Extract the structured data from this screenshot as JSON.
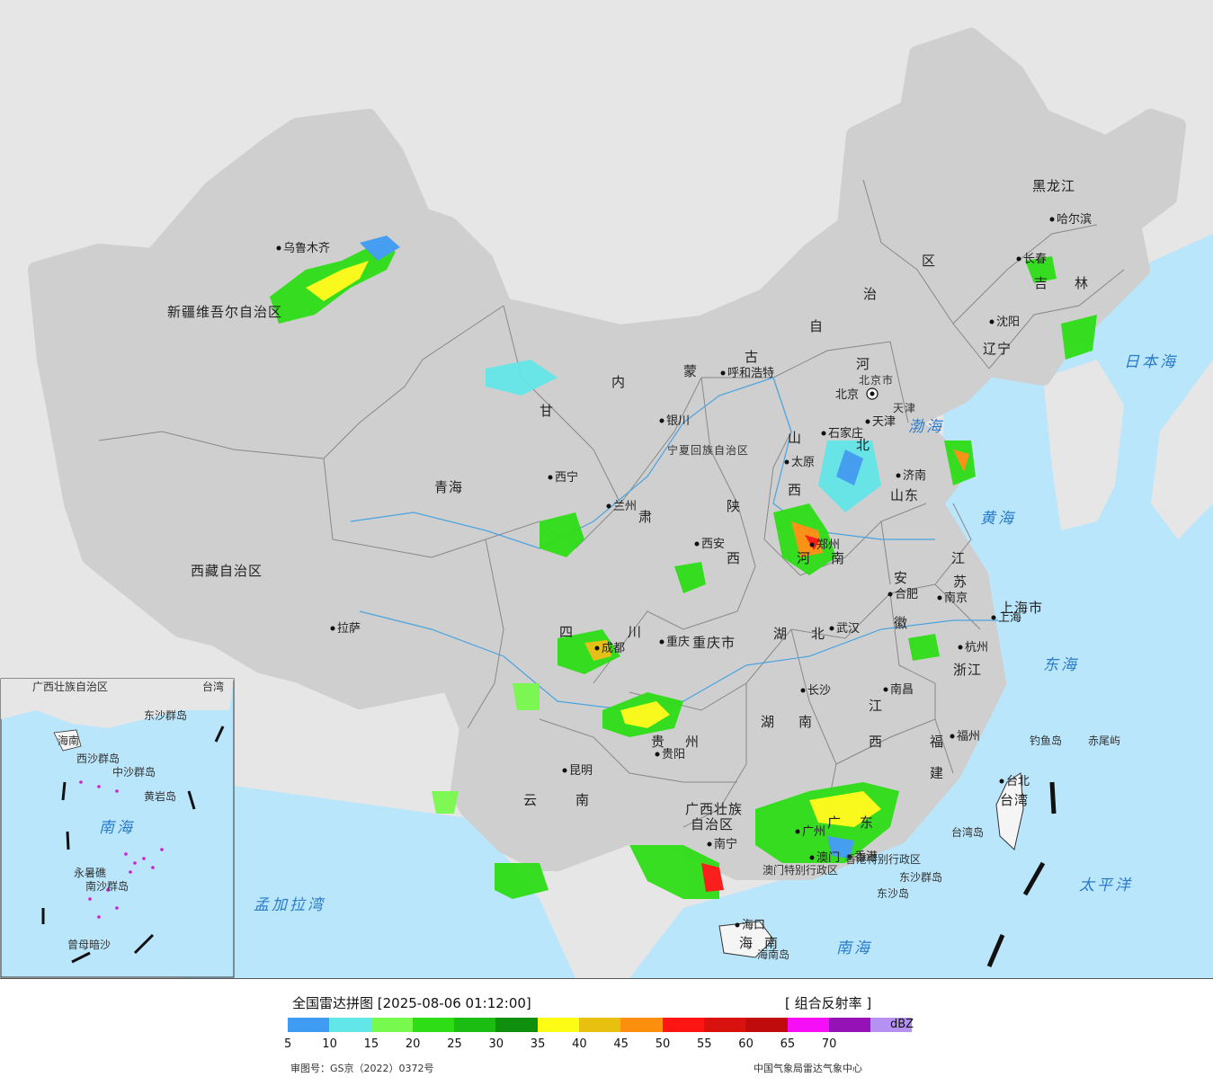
{
  "title": "全国雷达拼图 [2025-08-06 01:12:00]",
  "product": "[ 组合反射率 ]",
  "unit": "dBZ",
  "approval": "审图号：GS京（2022）0372号",
  "agency": "中国气象局雷达气象中心",
  "scale": {
    "colors": [
      "#3f9cf2",
      "#63e6e8",
      "#77f94d",
      "#2edd16",
      "#1bbd12",
      "#108e0d",
      "#fcfc14",
      "#e8c00f",
      "#fc8f0d",
      "#fc1512",
      "#d9120f",
      "#bf0b0b",
      "#f60ff6",
      "#9513b6",
      "#b592f2"
    ],
    "ticks": [
      "5",
      "10",
      "15",
      "20",
      "25",
      "30",
      "35",
      "40",
      "45",
      "50",
      "55",
      "60",
      "65",
      "70"
    ]
  },
  "provinces": [
    "新疆维吾尔自治区",
    "西藏自治区",
    "青海",
    "甘",
    "肃",
    "内",
    "蒙",
    "古",
    "自",
    "治",
    "区",
    "黑龙江",
    "吉",
    "林",
    "辽宁",
    "河",
    "北",
    "山",
    "西",
    "山东",
    "河",
    "南",
    "陕",
    "西",
    "宁夏回族自治区",
    "四",
    "川",
    "重庆市",
    "湖",
    "北",
    "湖",
    "南",
    "江",
    "西",
    "安",
    "徽",
    "江",
    "苏",
    "浙江",
    "福",
    "建",
    "贵",
    "州",
    "云",
    "南",
    "广西壮族",
    "自治区",
    "广",
    "东",
    "海",
    "南",
    "台湾",
    "上海市",
    "北京市",
    "天津"
  ],
  "cities": [
    "乌鲁木齐",
    "拉萨",
    "西宁",
    "兰州",
    "银川",
    "呼和浩特",
    "北京",
    "天津",
    "石家庄",
    "太原",
    "济南",
    "郑州",
    "西安",
    "成都",
    "重庆",
    "武汉",
    "合肥",
    "南京",
    "上海",
    "杭州",
    "南昌",
    "长沙",
    "贵阳",
    "昆明",
    "南宁",
    "广州",
    "香港",
    "澳门",
    "福州",
    "台北",
    "海口",
    "哈尔滨",
    "长春",
    "沈阳"
  ],
  "seas": [
    "渤海",
    "黄海",
    "东海",
    "南海",
    "太平洋",
    "日本海",
    "孟加拉湾"
  ],
  "islands": [
    "钓鱼岛",
    "赤尾屿",
    "东沙群岛",
    "台湾岛",
    "海南岛",
    "东沙岛",
    "香港特别行政区",
    "澳门特别行政区"
  ],
  "inset": [
    "广西壮族自治区",
    "海南",
    "东沙群岛",
    "中沙群岛",
    "黄岩岛",
    "西沙群岛",
    "南海",
    "永暑礁",
    "南沙群岛",
    "曾母暗沙",
    "台湾"
  ]
}
